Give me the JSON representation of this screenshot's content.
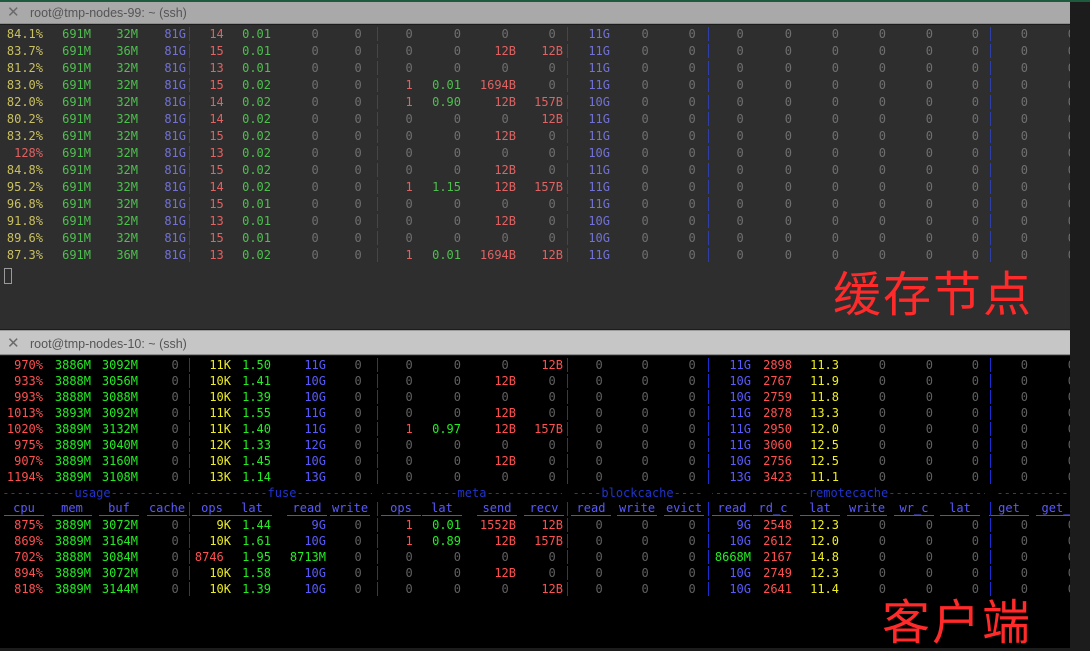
{
  "windows": [
    {
      "title": "root@tmp-nodes-99: ~ (ssh)",
      "annotation": "缓存节点"
    },
    {
      "title": "root@tmp-nodes-10: ~ (ssh)",
      "annotation": "客户端"
    }
  ],
  "icons": {
    "close": "close-x-icon"
  },
  "palettes": {
    "dim": {
      "yellow": "#c9c061",
      "green": "#4fbf4f",
      "blue": "#7272d6",
      "red": "#e06262",
      "gray": "#6f6f6f",
      "unit": "#777777",
      "sep": "#2f3fa8"
    },
    "bright": {
      "yellow": "#eeee22",
      "green": "#22ee22",
      "blue": "#5a5aff",
      "red": "#ff5050",
      "gray": "#606060",
      "unit": "#707070",
      "sep": "#1a2fd0"
    },
    "header": "#5a5aff",
    "group": "#2233cc",
    "annotation": "#ff2a2a"
  },
  "groups": [
    "usage",
    "fuse",
    "meta",
    "blockcache",
    "remotecache",
    ""
  ],
  "columns": [
    "cpu",
    "mem",
    "buf",
    "cache",
    "ops",
    "lat",
    "read",
    "write",
    "ops",
    "lat",
    "send",
    "recv",
    "read",
    "write",
    "evict",
    "read",
    "rd_c",
    "lat",
    "write",
    "wr_c",
    "lat",
    "get",
    "get_"
  ],
  "top_rows": [
    [
      "84.1%",
      "691M",
      "32M",
      "81G",
      "14",
      "0.01",
      "0",
      "0",
      "0",
      "0",
      "0",
      "0",
      "11G",
      "0",
      "0",
      "0",
      "0",
      "0",
      "0",
      "0",
      "0",
      "0",
      "0"
    ],
    [
      "83.7%",
      "691M",
      "36M",
      "81G",
      "15",
      "0.01",
      "0",
      "0",
      "0",
      "0",
      "12B",
      "12B",
      "11G",
      "0",
      "0",
      "0",
      "0",
      "0",
      "0",
      "0",
      "0",
      "0",
      "0"
    ],
    [
      "81.2%",
      "691M",
      "32M",
      "81G",
      "13",
      "0.01",
      "0",
      "0",
      "0",
      "0",
      "0",
      "0",
      "11G",
      "0",
      "0",
      "0",
      "0",
      "0",
      "0",
      "0",
      "0",
      "0",
      "0"
    ],
    [
      "83.0%",
      "691M",
      "32M",
      "81G",
      "15",
      "0.02",
      "0",
      "0",
      "1",
      "0.01",
      "1694B",
      "0",
      "11G",
      "0",
      "0",
      "0",
      "0",
      "0",
      "0",
      "0",
      "0",
      "0",
      "0"
    ],
    [
      "82.0%",
      "691M",
      "32M",
      "81G",
      "14",
      "0.02",
      "0",
      "0",
      "1",
      "0.90",
      "12B",
      "157B",
      "10G",
      "0",
      "0",
      "0",
      "0",
      "0",
      "0",
      "0",
      "0",
      "0",
      "0"
    ],
    [
      "80.2%",
      "691M",
      "32M",
      "81G",
      "14",
      "0.02",
      "0",
      "0",
      "0",
      "0",
      "0",
      "12B",
      "11G",
      "0",
      "0",
      "0",
      "0",
      "0",
      "0",
      "0",
      "0",
      "0",
      "0"
    ],
    [
      "83.2%",
      "691M",
      "32M",
      "81G",
      "15",
      "0.02",
      "0",
      "0",
      "0",
      "0",
      "12B",
      "0",
      "11G",
      "0",
      "0",
      "0",
      "0",
      "0",
      "0",
      "0",
      "0",
      "0",
      "0"
    ],
    [
      "128%",
      "691M",
      "32M",
      "81G",
      "13",
      "0.02",
      "0",
      "0",
      "0",
      "0",
      "0",
      "0",
      "10G",
      "0",
      "0",
      "0",
      "0",
      "0",
      "0",
      "0",
      "0",
      "0",
      "0"
    ],
    [
      "84.8%",
      "691M",
      "32M",
      "81G",
      "15",
      "0.02",
      "0",
      "0",
      "0",
      "0",
      "12B",
      "0",
      "11G",
      "0",
      "0",
      "0",
      "0",
      "0",
      "0",
      "0",
      "0",
      "0",
      "0"
    ],
    [
      "95.2%",
      "691M",
      "32M",
      "81G",
      "14",
      "0.02",
      "0",
      "0",
      "1",
      "1.15",
      "12B",
      "157B",
      "11G",
      "0",
      "0",
      "0",
      "0",
      "0",
      "0",
      "0",
      "0",
      "0",
      "0"
    ],
    [
      "96.8%",
      "691M",
      "32M",
      "81G",
      "15",
      "0.01",
      "0",
      "0",
      "0",
      "0",
      "0",
      "0",
      "11G",
      "0",
      "0",
      "0",
      "0",
      "0",
      "0",
      "0",
      "0",
      "0",
      "0"
    ],
    [
      "91.8%",
      "691M",
      "32M",
      "81G",
      "13",
      "0.01",
      "0",
      "0",
      "0",
      "0",
      "12B",
      "0",
      "10G",
      "0",
      "0",
      "0",
      "0",
      "0",
      "0",
      "0",
      "0",
      "0",
      "0"
    ],
    [
      "89.6%",
      "691M",
      "32M",
      "81G",
      "15",
      "0.01",
      "0",
      "0",
      "0",
      "0",
      "0",
      "0",
      "10G",
      "0",
      "0",
      "0",
      "0",
      "0",
      "0",
      "0",
      "0",
      "0",
      "0"
    ],
    [
      "87.3%",
      "691M",
      "36M",
      "81G",
      "13",
      "0.02",
      "0",
      "0",
      "1",
      "0.01",
      "1694B",
      "12B",
      "11G",
      "0",
      "0",
      "0",
      "0",
      "0",
      "0",
      "0",
      "0",
      "0",
      "0"
    ]
  ],
  "bottom_rows_before_header": [
    [
      "970%",
      "3886M",
      "3092M",
      "0",
      "11K",
      "1.50",
      "11G",
      "0",
      "0",
      "0",
      "0",
      "12B",
      "0",
      "0",
      "0",
      "11G",
      "2898",
      "11.3",
      "0",
      "0",
      "0",
      "0",
      "0"
    ],
    [
      "933%",
      "3888M",
      "3056M",
      "0",
      "10K",
      "1.41",
      "10G",
      "0",
      "0",
      "0",
      "12B",
      "0",
      "0",
      "0",
      "0",
      "10G",
      "2767",
      "11.9",
      "0",
      "0",
      "0",
      "0",
      "0"
    ],
    [
      "993%",
      "3888M",
      "3088M",
      "0",
      "10K",
      "1.39",
      "10G",
      "0",
      "0",
      "0",
      "0",
      "0",
      "0",
      "0",
      "0",
      "10G",
      "2759",
      "11.8",
      "0",
      "0",
      "0",
      "0",
      "0"
    ],
    [
      "1013%",
      "3893M",
      "3092M",
      "0",
      "11K",
      "1.55",
      "11G",
      "0",
      "0",
      "0",
      "12B",
      "0",
      "0",
      "0",
      "0",
      "11G",
      "2878",
      "13.3",
      "0",
      "0",
      "0",
      "0",
      "0"
    ],
    [
      "1020%",
      "3889M",
      "3132M",
      "0",
      "11K",
      "1.40",
      "11G",
      "0",
      "1",
      "0.97",
      "12B",
      "157B",
      "0",
      "0",
      "0",
      "11G",
      "2950",
      "12.0",
      "0",
      "0",
      "0",
      "0",
      "0"
    ],
    [
      "975%",
      "3889M",
      "3040M",
      "0",
      "12K",
      "1.33",
      "12G",
      "0",
      "0",
      "0",
      "0",
      "0",
      "0",
      "0",
      "0",
      "11G",
      "3060",
      "12.5",
      "0",
      "0",
      "0",
      "0",
      "0"
    ],
    [
      "907%",
      "3889M",
      "3160M",
      "0",
      "10K",
      "1.45",
      "10G",
      "0",
      "0",
      "0",
      "12B",
      "0",
      "0",
      "0",
      "0",
      "10G",
      "2756",
      "12.5",
      "0",
      "0",
      "0",
      "0",
      "0"
    ],
    [
      "1194%",
      "3889M",
      "3108M",
      "0",
      "13K",
      "1.14",
      "13G",
      "0",
      "0",
      "0",
      "0",
      "0",
      "0",
      "0",
      "0",
      "13G",
      "3423",
      "11.1",
      "0",
      "0",
      "0",
      "0",
      "0"
    ]
  ],
  "bottom_rows_after_header": [
    [
      "875%",
      "3889M",
      "3072M",
      "0",
      "9K",
      "1.44",
      "9G",
      "0",
      "1",
      "0.01",
      "1552B",
      "12B",
      "0",
      "0",
      "0",
      "9G",
      "2548",
      "12.3",
      "0",
      "0",
      "0",
      "0",
      "0"
    ],
    [
      "869%",
      "3889M",
      "3164M",
      "0",
      "10K",
      "1.61",
      "10G",
      "0",
      "1",
      "0.89",
      "12B",
      "157B",
      "0",
      "0",
      "0",
      "10G",
      "2612",
      "12.0",
      "0",
      "0",
      "0",
      "0",
      "0"
    ],
    [
      "702%",
      "3888M",
      "3084M",
      "0",
      "8746",
      "1.95",
      "8713M",
      "0",
      "0",
      "0",
      "0",
      "0",
      "0",
      "0",
      "0",
      "8668M",
      "2167",
      "14.8",
      "0",
      "0",
      "0",
      "0",
      "0"
    ],
    [
      "894%",
      "3889M",
      "3072M",
      "0",
      "10K",
      "1.58",
      "10G",
      "0",
      "0",
      "0",
      "12B",
      "0",
      "0",
      "0",
      "0",
      "10G",
      "2749",
      "12.3",
      "0",
      "0",
      "0",
      "0",
      "0"
    ],
    [
      "818%",
      "3889M",
      "3144M",
      "0",
      "10K",
      "1.39",
      "10G",
      "0",
      "0",
      "0",
      "0",
      "12B",
      "0",
      "0",
      "0",
      "10G",
      "2641",
      "11.4",
      "0",
      "0",
      "0",
      "0",
      "0"
    ]
  ],
  "unitless_colors": [
    "",
    "",
    "",
    "",
    "red",
    "green",
    "",
    "",
    "red",
    "green",
    "",
    "",
    "",
    "",
    "",
    "",
    "red",
    "yellow",
    "gray",
    "gray",
    "gray",
    "gray",
    "gray"
  ]
}
